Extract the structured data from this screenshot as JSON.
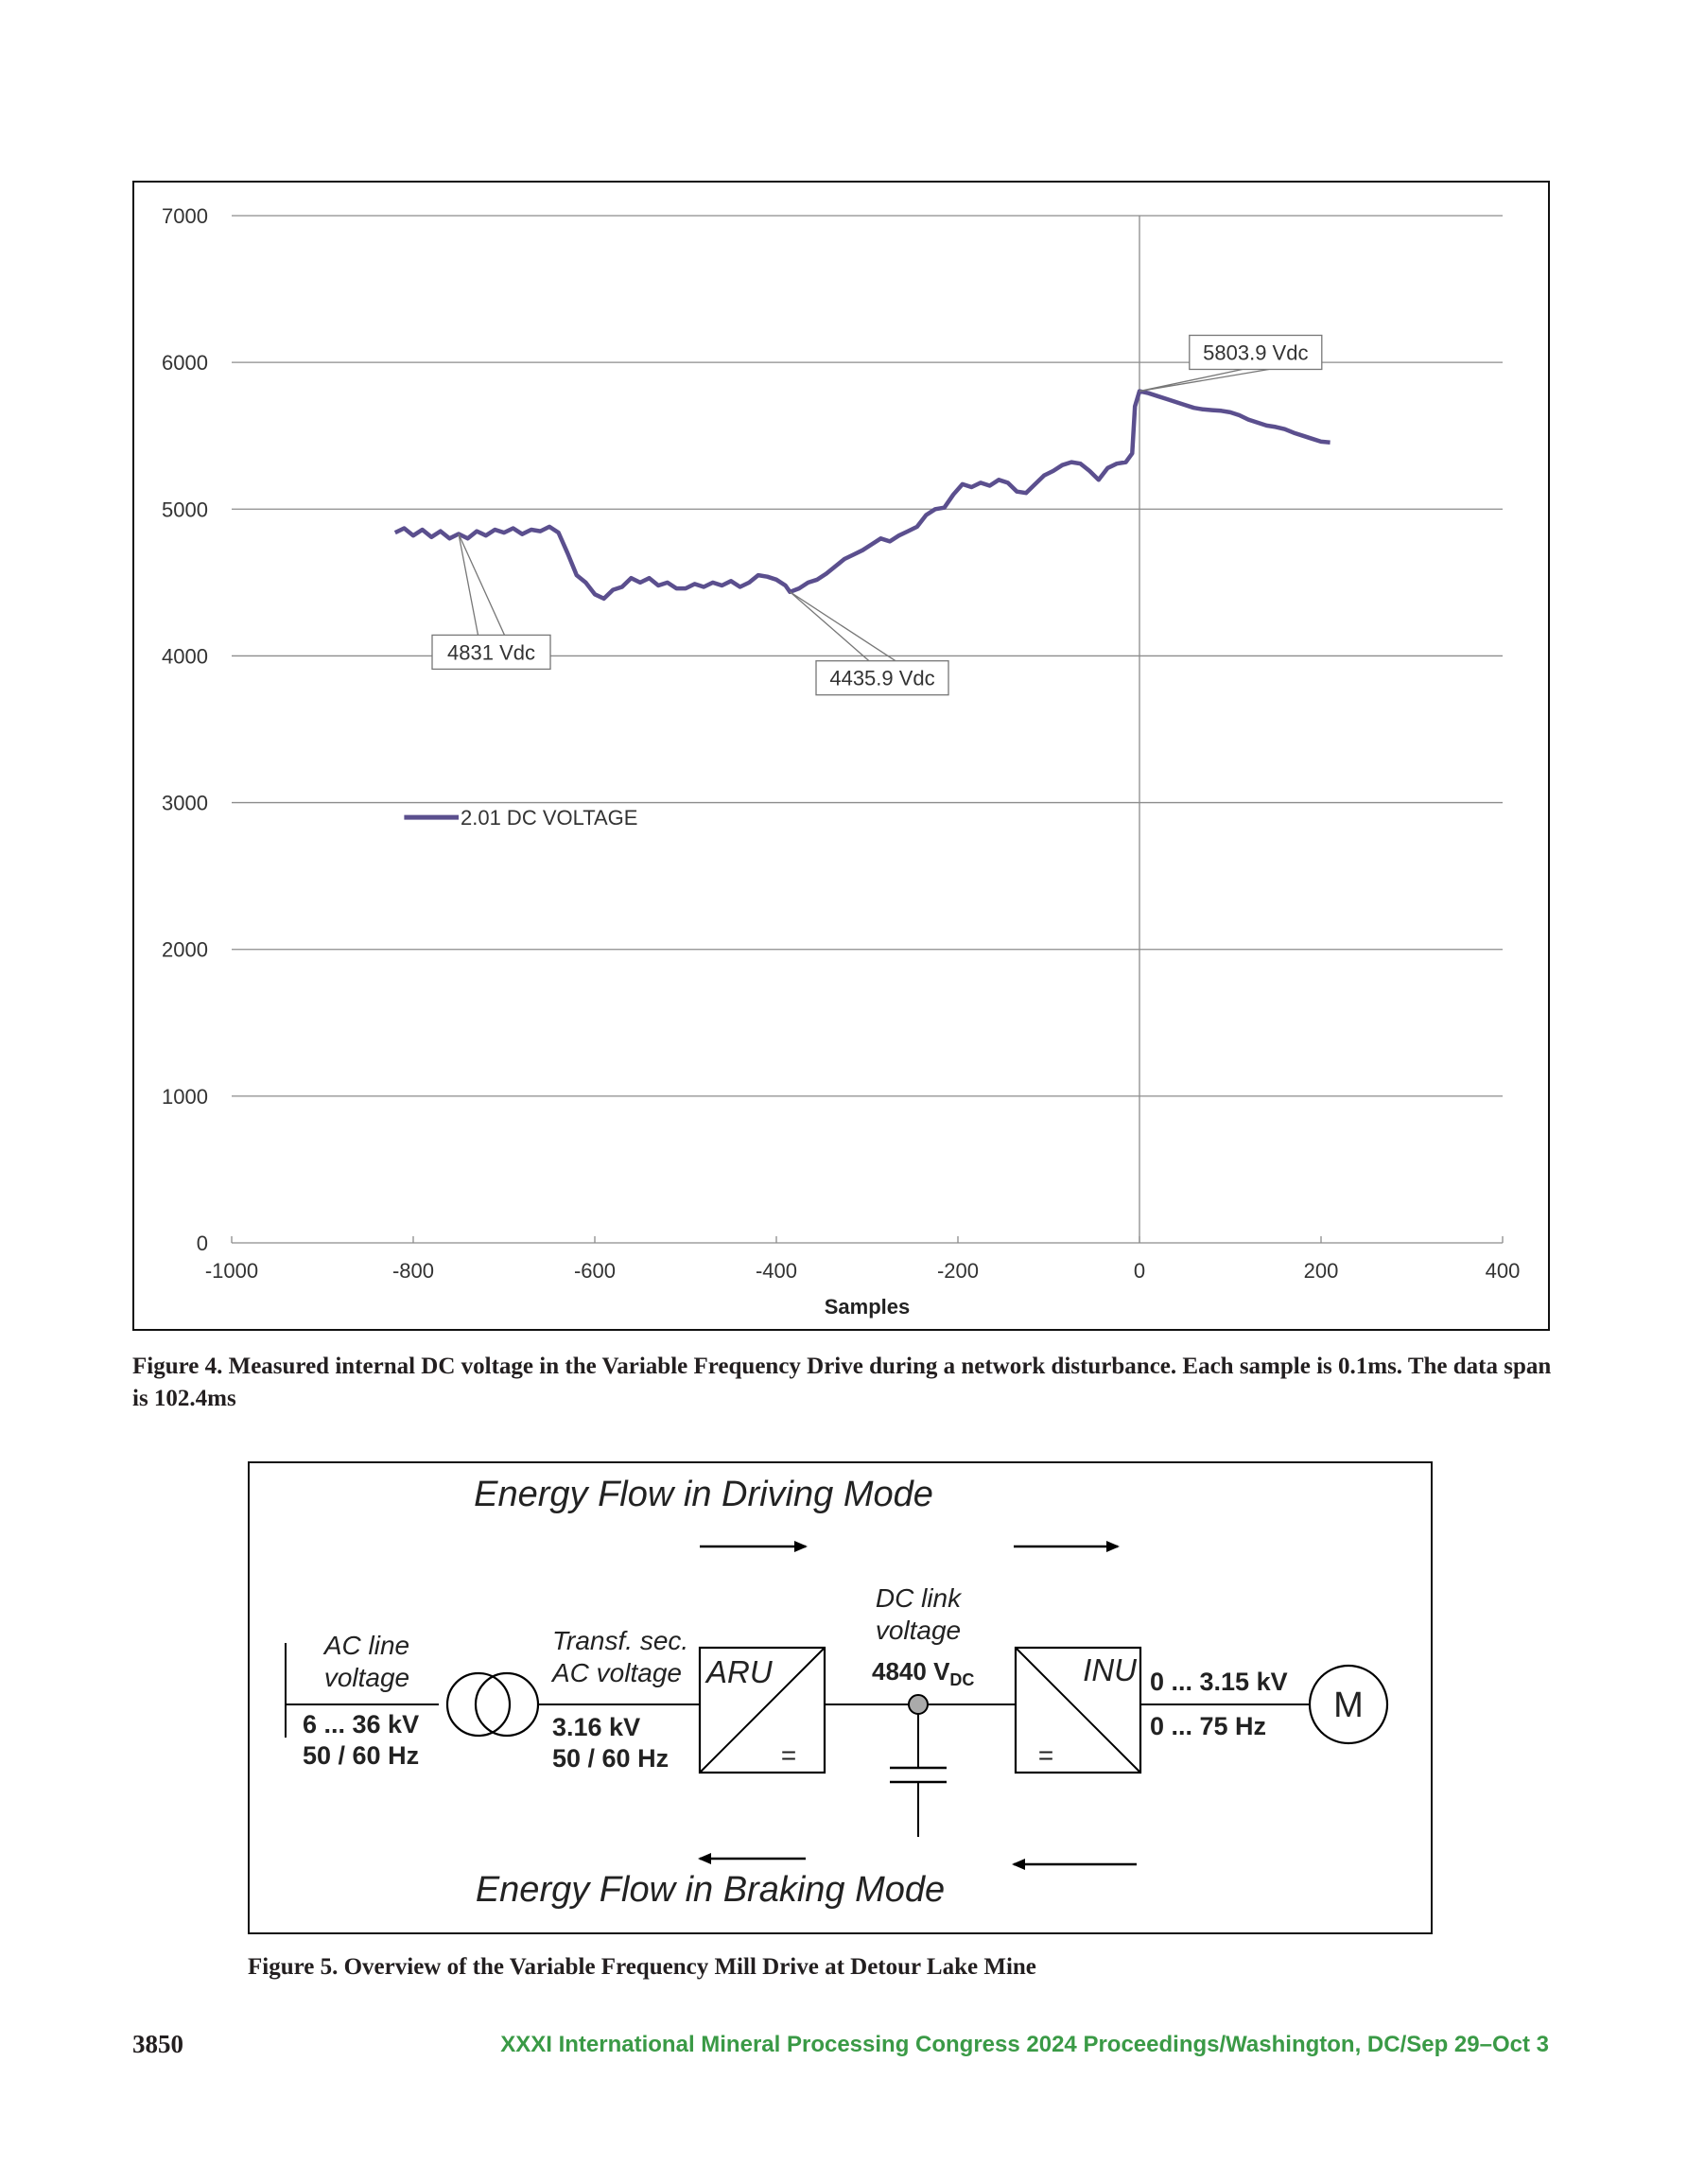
{
  "figure4": {
    "caption": "Figure 4. Measured internal DC voltage in the Variable Frequency Drive during a network disturbance. Each sample is 0.1ms. The data span is 102.4ms"
  },
  "chart_data": {
    "type": "line",
    "xlabel": "Samples",
    "ylabel": "",
    "xlim": [
      -1000,
      400
    ],
    "ylim": [
      0,
      7000
    ],
    "x_ticks": [
      "-1000",
      "-800",
      "-600",
      "-400",
      "-200",
      "0",
      "200",
      "400"
    ],
    "y_ticks": [
      "0",
      "1000",
      "2000",
      "3000",
      "4000",
      "5000",
      "6000",
      "7000"
    ],
    "grid": "horizontal",
    "legend_position": "middle-left",
    "vertical_reference_line_x": 0,
    "series": [
      {
        "name": "2.01 DC VOLTAGE",
        "color": "#5b4f8e",
        "points": [
          [
            -820,
            4840
          ],
          [
            -810,
            4870
          ],
          [
            -800,
            4820
          ],
          [
            -790,
            4860
          ],
          [
            -780,
            4810
          ],
          [
            -770,
            4850
          ],
          [
            -760,
            4800
          ],
          [
            -750,
            4831
          ],
          [
            -740,
            4800
          ],
          [
            -730,
            4850
          ],
          [
            -720,
            4820
          ],
          [
            -710,
            4860
          ],
          [
            -700,
            4840
          ],
          [
            -690,
            4870
          ],
          [
            -680,
            4830
          ],
          [
            -670,
            4860
          ],
          [
            -660,
            4850
          ],
          [
            -650,
            4880
          ],
          [
            -640,
            4840
          ],
          [
            -630,
            4700
          ],
          [
            -620,
            4550
          ],
          [
            -610,
            4500
          ],
          [
            -600,
            4420
          ],
          [
            -590,
            4390
          ],
          [
            -580,
            4450
          ],
          [
            -570,
            4470
          ],
          [
            -560,
            4530
          ],
          [
            -550,
            4500
          ],
          [
            -540,
            4530
          ],
          [
            -530,
            4480
          ],
          [
            -520,
            4500
          ],
          [
            -510,
            4460
          ],
          [
            -500,
            4460
          ],
          [
            -490,
            4490
          ],
          [
            -480,
            4470
          ],
          [
            -470,
            4500
          ],
          [
            -460,
            4480
          ],
          [
            -450,
            4510
          ],
          [
            -440,
            4470
          ],
          [
            -430,
            4500
          ],
          [
            -420,
            4550
          ],
          [
            -410,
            4540
          ],
          [
            -400,
            4520
          ],
          [
            -390,
            4480
          ],
          [
            -385,
            4435.9
          ],
          [
            -375,
            4460
          ],
          [
            -365,
            4500
          ],
          [
            -355,
            4520
          ],
          [
            -345,
            4560
          ],
          [
            -335,
            4610
          ],
          [
            -325,
            4660
          ],
          [
            -315,
            4690
          ],
          [
            -305,
            4720
          ],
          [
            -295,
            4760
          ],
          [
            -285,
            4800
          ],
          [
            -275,
            4780
          ],
          [
            -265,
            4820
          ],
          [
            -255,
            4850
          ],
          [
            -245,
            4880
          ],
          [
            -235,
            4960
          ],
          [
            -225,
            5000
          ],
          [
            -215,
            5010
          ],
          [
            -205,
            5100
          ],
          [
            -195,
            5170
          ],
          [
            -185,
            5150
          ],
          [
            -175,
            5180
          ],
          [
            -165,
            5160
          ],
          [
            -155,
            5200
          ],
          [
            -145,
            5180
          ],
          [
            -135,
            5120
          ],
          [
            -125,
            5110
          ],
          [
            -115,
            5170
          ],
          [
            -105,
            5230
          ],
          [
            -95,
            5260
          ],
          [
            -85,
            5300
          ],
          [
            -75,
            5320
          ],
          [
            -65,
            5310
          ],
          [
            -55,
            5260
          ],
          [
            -45,
            5200
          ],
          [
            -35,
            5280
          ],
          [
            -25,
            5310
          ],
          [
            -15,
            5320
          ],
          [
            -8,
            5380
          ],
          [
            -5,
            5700
          ],
          [
            0,
            5803.9
          ],
          [
            10,
            5790
          ],
          [
            20,
            5770
          ],
          [
            30,
            5750
          ],
          [
            40,
            5730
          ],
          [
            50,
            5710
          ],
          [
            60,
            5690
          ],
          [
            70,
            5680
          ],
          [
            80,
            5675
          ],
          [
            90,
            5670
          ],
          [
            100,
            5660
          ],
          [
            110,
            5640
          ],
          [
            120,
            5610
          ],
          [
            130,
            5590
          ],
          [
            140,
            5570
          ],
          [
            150,
            5560
          ],
          [
            160,
            5545
          ],
          [
            170,
            5520
          ],
          [
            180,
            5500
          ],
          [
            190,
            5480
          ],
          [
            200,
            5460
          ],
          [
            210,
            5455
          ]
        ]
      }
    ],
    "annotations": [
      {
        "text": "4831 Vdc",
        "x": -750,
        "y": 4831
      },
      {
        "text": "4435.9 Vdc",
        "x": -385,
        "y": 4435.9
      },
      {
        "text": "5803.9 Vdc",
        "x": 0,
        "y": 5803.9
      }
    ]
  },
  "figure5": {
    "caption": "Figure 5. Overview of the Variable Frequency Mill Drive at Detour Lake Mine",
    "driving_mode_label": "Energy Flow in Driving Mode",
    "braking_mode_label": "Energy Flow in Braking Mode",
    "ac_line_label_1": "AC line",
    "ac_line_label_2": "voltage",
    "ac_line_value_1": "6 ... 36 kV",
    "ac_line_value_2": "50 / 60 Hz",
    "transf_label_1": "Transf. sec.",
    "transf_label_2": "AC voltage",
    "transf_value_1": "3.16 kV",
    "transf_value_2": "50 / 60 Hz",
    "aru_label": "ARU",
    "aru_symbol": "=",
    "dc_link_label_1": "DC link",
    "dc_link_label_2": "voltage",
    "dc_link_value": "4840 V",
    "dc_link_subscript": "DC",
    "inu_label": "INU",
    "inu_symbol": "=",
    "output_value_1": "0 ... 3.15 kV",
    "output_value_2": "0 ... 75 Hz",
    "motor_label": "M"
  },
  "footer": {
    "page_number": "3850",
    "running_title": "XXXI International Mineral Processing Congress 2024 Proceedings/Washington, DC/Sep 29–Oct 3"
  }
}
